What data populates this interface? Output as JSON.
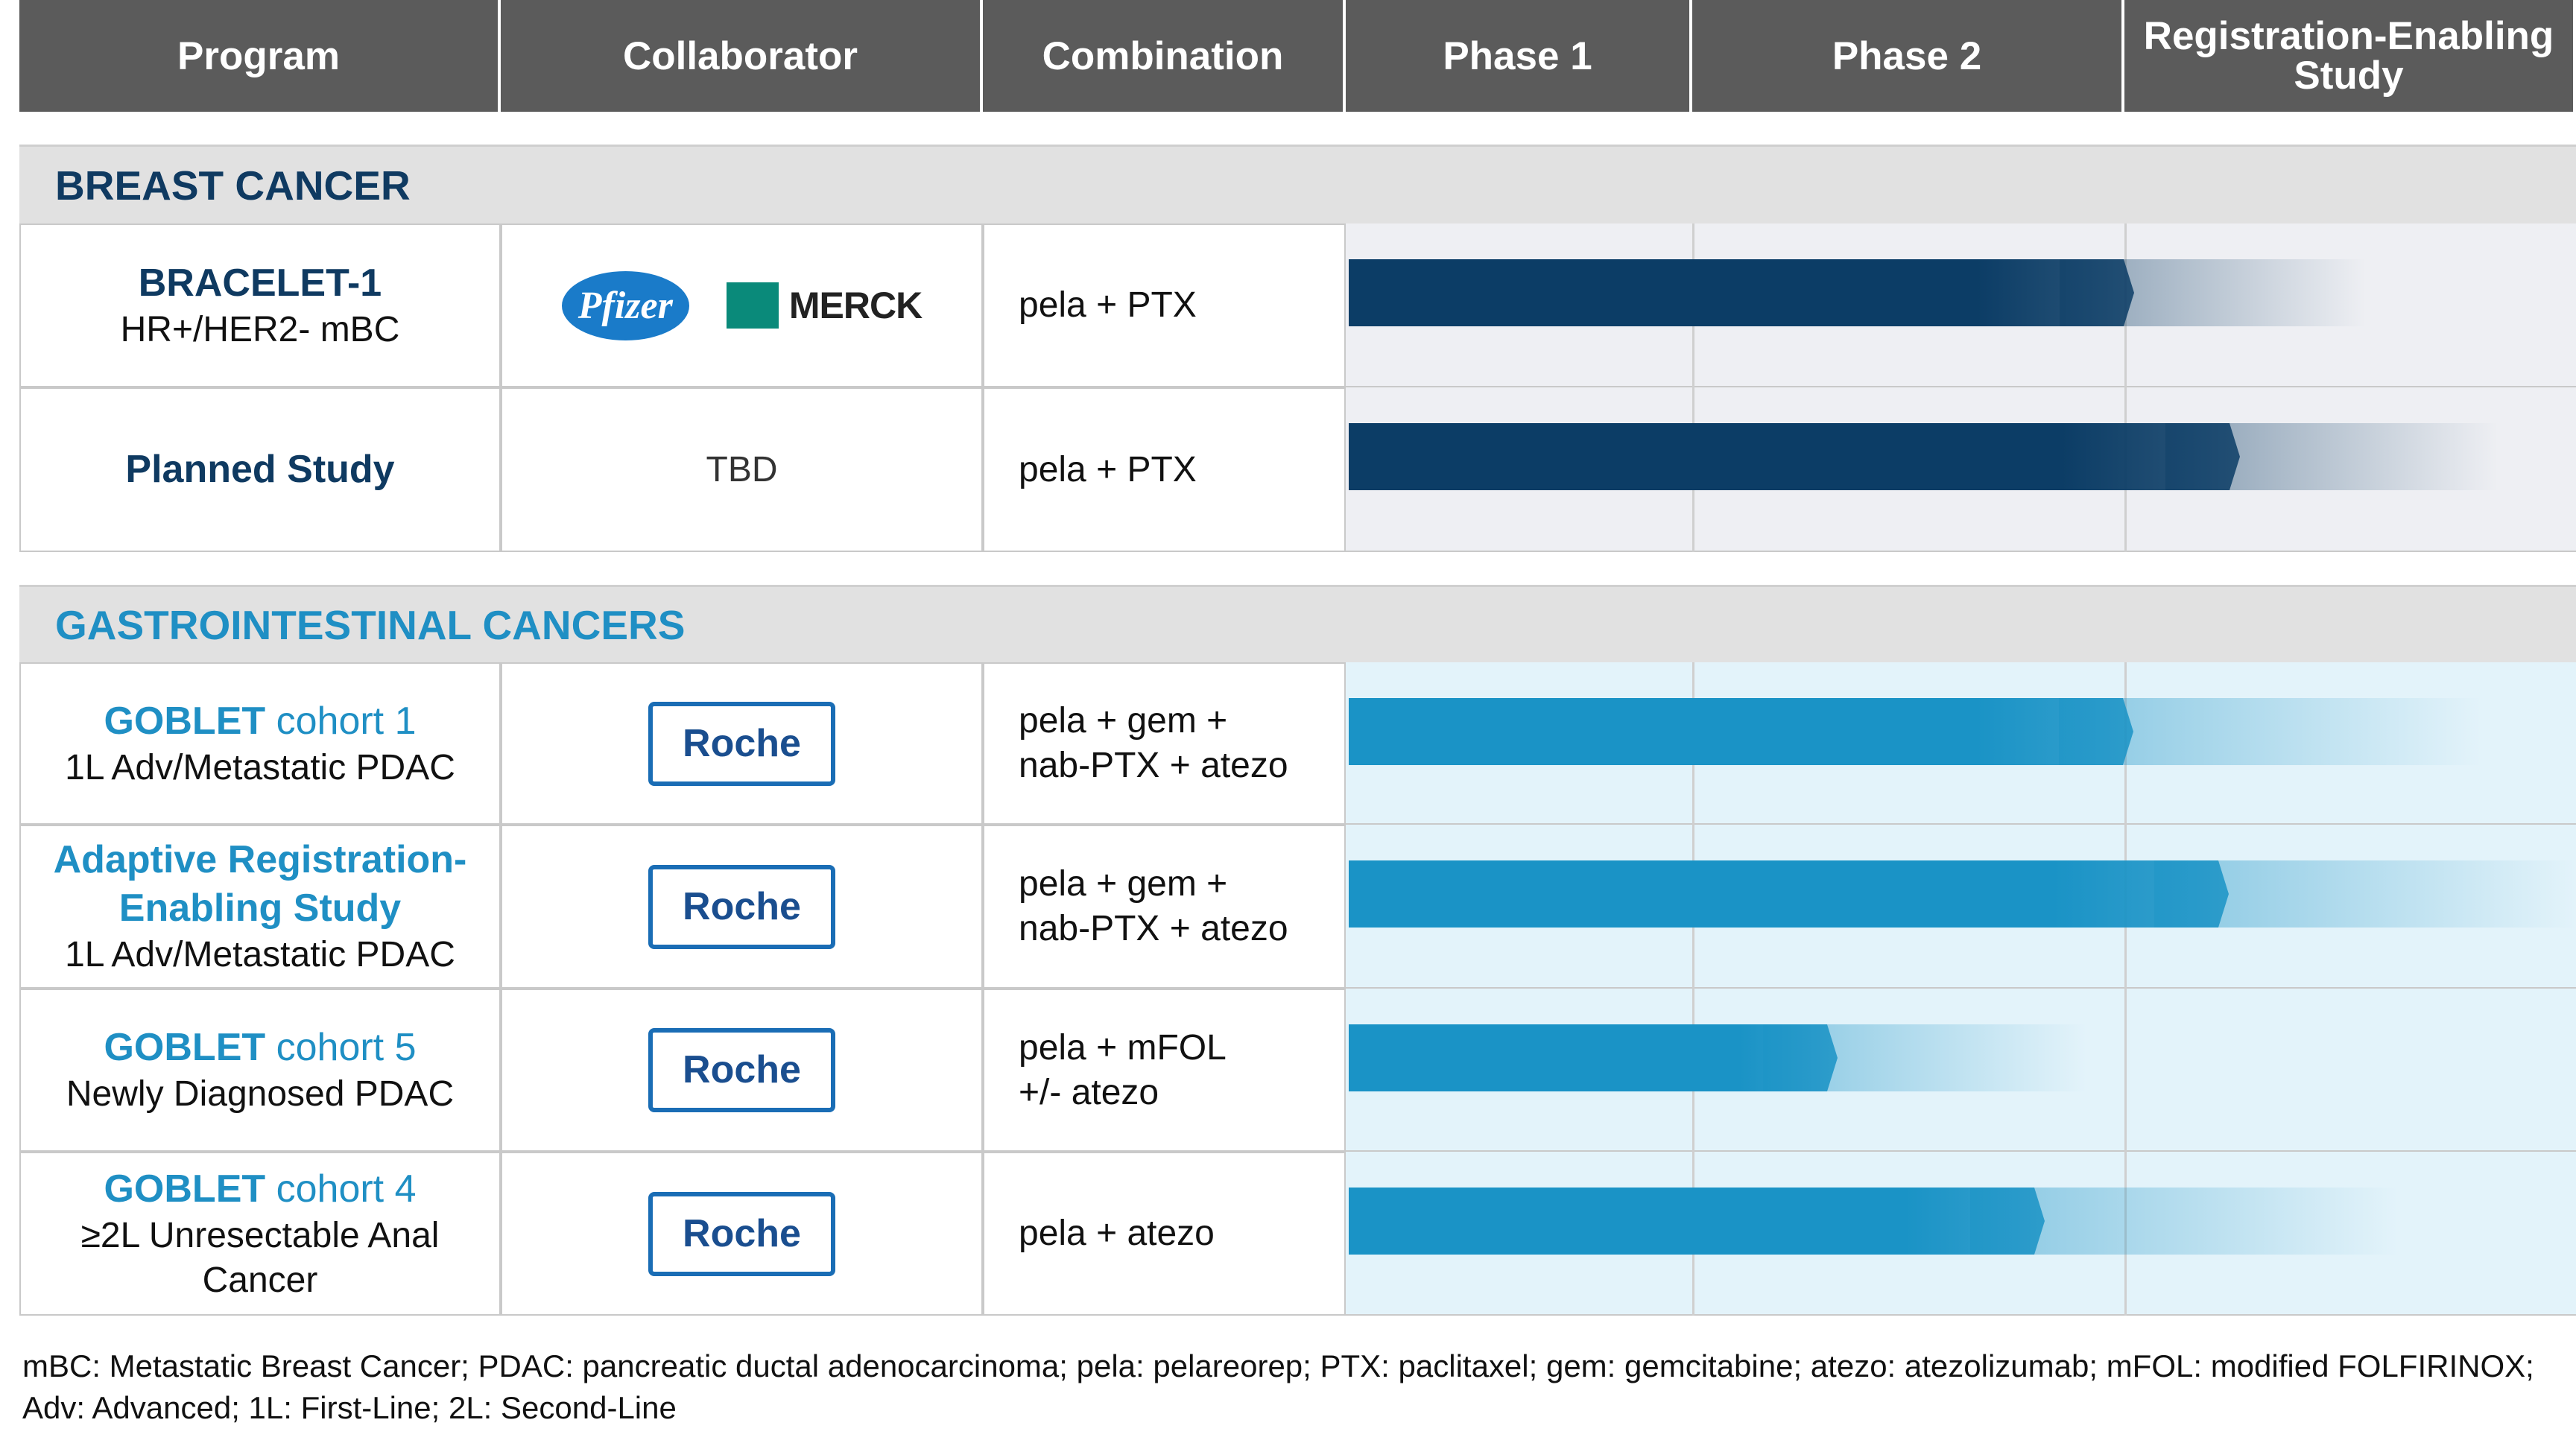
{
  "header": {
    "columns": [
      "Program",
      "Collaborator",
      "Combination",
      "Phase 1",
      "Phase 2",
      "Registration-Enabling Study"
    ]
  },
  "sections": [
    {
      "title": "BREAST CANCER",
      "rows": [
        {
          "program": "BRACELET-1",
          "program_rest": null,
          "subtitle": "HR+/HER2- mBC",
          "collaborators": [
            "Pfizer",
            "MERCK"
          ],
          "combination": [
            "pela + PTX"
          ]
        },
        {
          "program": "Planned Study",
          "program_rest": null,
          "subtitle": null,
          "collaborators": [
            "TBD"
          ],
          "combination": [
            "pela + PTX"
          ]
        }
      ]
    },
    {
      "title": "GASTROINTESTINAL CANCERS",
      "rows": [
        {
          "program": "GOBLET",
          "program_rest": " cohort 1",
          "subtitle": "1L Adv/Metastatic PDAC",
          "collaborators": [
            "Roche"
          ],
          "combination": [
            "pela + gem +",
            "nab-PTX + atezo"
          ]
        },
        {
          "program": "Adaptive Registration-Enabling Study",
          "program_rest": null,
          "subtitle": "1L Adv/Metastatic PDAC",
          "collaborators": [
            "Roche"
          ],
          "combination": [
            "pela + gem +",
            "nab-PTX + atezo"
          ]
        },
        {
          "program": "GOBLET",
          "program_rest": " cohort 5",
          "subtitle": "Newly Diagnosed PDAC",
          "collaborators": [
            "Roche"
          ],
          "combination": [
            "pela + mFOL",
            "+/- atezo"
          ]
        },
        {
          "program": "GOBLET",
          "program_rest": " cohort 4",
          "subtitle": "≥2L Unresectable Anal Cancer",
          "collaborators": [
            "Roche"
          ],
          "combination": [
            "pela + atezo"
          ]
        }
      ]
    }
  ],
  "footnote": "mBC: Metastatic Breast Cancer; PDAC: pancreatic ductal adenocarcinoma; pela: pelareorep; PTX: paclitaxel; gem: gemcitabine; atezo: atezolizumab; mFOL: modified FOLFIRINOX; Adv: Advanced; 1L: First-Line; 2L: Second-Line"
}
